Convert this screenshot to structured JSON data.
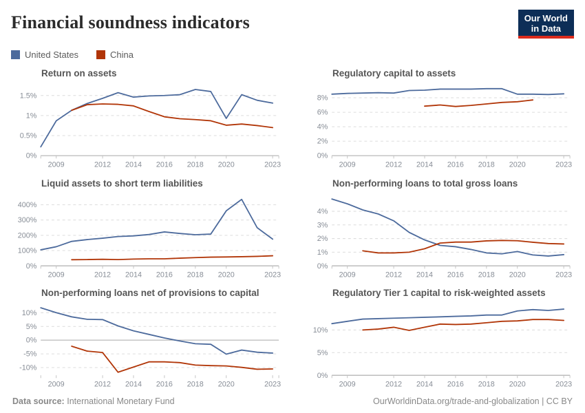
{
  "page": {
    "title": "Financial soundness indicators",
    "logo": {
      "line1": "Our World",
      "line2": "in Data"
    },
    "footer": {
      "source_label": "Data source:",
      "source_value": "International Monetary Fund",
      "right_text": "OurWorldinData.org/trade-and-globalization | CC BY"
    }
  },
  "colors": {
    "united_states": "#4C6A9C",
    "china": "#B13507",
    "logo_bg": "#0d2e57",
    "logo_underline": "#dc2b1c",
    "grid": "#dcdcdc",
    "zero_line": "#a6a6a6",
    "tick_label": "#878d96"
  },
  "legend": {
    "items": [
      {
        "label": "United States",
        "color": "#4C6A9C"
      },
      {
        "label": "China",
        "color": "#B13507"
      }
    ]
  },
  "chart_data": [
    {
      "type": "line",
      "title": "Return on assets",
      "unit": "%",
      "xlim": [
        2008,
        2023.4
      ],
      "ylim": [
        0,
        1.75
      ],
      "x_ticks": [
        2009,
        2012,
        2014,
        2016,
        2018,
        2020,
        2023
      ],
      "y_ticks": [
        0,
        0.5,
        1,
        1.5
      ],
      "y_tick_labels": [
        "0%",
        "0.5%",
        "1%",
        "1.5%"
      ],
      "grid": true,
      "legend_position": "top-of-page",
      "series": [
        {
          "name": "United States",
          "color": "#4C6A9C",
          "x": [
            2008,
            2009,
            2010,
            2011,
            2012,
            2013,
            2014,
            2015,
            2016,
            2017,
            2018,
            2019,
            2020,
            2021,
            2022,
            2023
          ],
          "values": [
            0.22,
            0.87,
            1.13,
            1.3,
            1.43,
            1.57,
            1.46,
            1.49,
            1.5,
            1.52,
            1.65,
            1.6,
            0.93,
            1.52,
            1.38,
            1.31
          ]
        },
        {
          "name": "China",
          "color": "#B13507",
          "x": [
            2010,
            2011,
            2012,
            2013,
            2014,
            2015,
            2016,
            2017,
            2018,
            2019,
            2020,
            2021,
            2022,
            2023
          ],
          "values": [
            1.13,
            1.27,
            1.29,
            1.28,
            1.24,
            1.1,
            0.97,
            0.92,
            0.9,
            0.87,
            0.76,
            0.79,
            0.75,
            0.7
          ]
        }
      ]
    },
    {
      "type": "line",
      "title": "Regulatory capital to assets",
      "unit": "%",
      "xlim": [
        2008,
        2023.4
      ],
      "ylim": [
        0,
        9.7
      ],
      "x_ticks": [
        2009,
        2012,
        2014,
        2016,
        2018,
        2020,
        2023
      ],
      "y_ticks": [
        0,
        2,
        4,
        6,
        8
      ],
      "y_tick_labels": [
        "0%",
        "2%",
        "4%",
        "6%",
        "8%"
      ],
      "grid": true,
      "series": [
        {
          "name": "United States",
          "color": "#4C6A9C",
          "x": [
            2008,
            2009,
            2010,
            2011,
            2012,
            2013,
            2014,
            2015,
            2016,
            2017,
            2018,
            2019,
            2020,
            2021,
            2022,
            2023
          ],
          "values": [
            8.5,
            8.6,
            8.65,
            8.7,
            8.65,
            9.0,
            9.05,
            9.2,
            9.2,
            9.2,
            9.25,
            9.25,
            8.5,
            8.5,
            8.45,
            8.55
          ]
        },
        {
          "name": "China",
          "color": "#B13507",
          "x": [
            2014,
            2015,
            2016,
            2017,
            2018,
            2019,
            2020,
            2021
          ],
          "values": [
            6.85,
            7.0,
            6.8,
            6.95,
            7.15,
            7.35,
            7.45,
            7.7
          ]
        }
      ]
    },
    {
      "type": "line",
      "title": "Liquid assets to short term liabilities",
      "unit": "%",
      "xlim": [
        2008,
        2023.4
      ],
      "ylim": [
        0,
        460
      ],
      "x_ticks": [
        2009,
        2012,
        2014,
        2016,
        2018,
        2020,
        2023
      ],
      "y_ticks": [
        0,
        100,
        200,
        300,
        400
      ],
      "y_tick_labels": [
        "0%",
        "100%",
        "200%",
        "300%",
        "400%"
      ],
      "grid": true,
      "series": [
        {
          "name": "United States",
          "color": "#4C6A9C",
          "x": [
            2008,
            2009,
            2010,
            2011,
            2012,
            2013,
            2014,
            2015,
            2016,
            2017,
            2018,
            2019,
            2020,
            2021,
            2022,
            2023
          ],
          "values": [
            105,
            125,
            160,
            172,
            181,
            192,
            196,
            205,
            222,
            212,
            204,
            208,
            360,
            435,
            250,
            175
          ]
        },
        {
          "name": "China",
          "color": "#B13507",
          "x": [
            2010,
            2011,
            2012,
            2013,
            2014,
            2015,
            2016,
            2017,
            2018,
            2019,
            2020,
            2021,
            2022,
            2023
          ],
          "values": [
            40,
            41,
            43,
            41,
            44,
            46,
            46,
            50,
            54,
            57,
            58,
            60,
            62,
            66
          ]
        }
      ]
    },
    {
      "type": "line",
      "title": "Non-performing loans to total gross loans",
      "unit": "%",
      "xlim": [
        2008,
        2023.4
      ],
      "ylim": [
        0,
        5.15
      ],
      "x_ticks": [
        2009,
        2012,
        2014,
        2016,
        2018,
        2020,
        2023
      ],
      "y_ticks": [
        0,
        1,
        2,
        3,
        4
      ],
      "y_tick_labels": [
        "0%",
        "1%",
        "2%",
        "3%",
        "4%"
      ],
      "grid": true,
      "series": [
        {
          "name": "United States",
          "color": "#4C6A9C",
          "x": [
            2008,
            2009,
            2010,
            2011,
            2012,
            2013,
            2014,
            2015,
            2016,
            2017,
            2018,
            2019,
            2020,
            2021,
            2022,
            2023
          ],
          "values": [
            4.9,
            4.55,
            4.1,
            3.8,
            3.3,
            2.45,
            1.9,
            1.5,
            1.4,
            1.2,
            0.95,
            0.88,
            1.05,
            0.8,
            0.72,
            0.82
          ]
        },
        {
          "name": "China",
          "color": "#B13507",
          "x": [
            2010,
            2011,
            2012,
            2013,
            2014,
            2015,
            2016,
            2017,
            2018,
            2019,
            2020,
            2021,
            2022,
            2023
          ],
          "values": [
            1.1,
            0.95,
            0.95,
            1.0,
            1.25,
            1.67,
            1.74,
            1.74,
            1.83,
            1.86,
            1.84,
            1.73,
            1.63,
            1.6
          ]
        }
      ]
    },
    {
      "type": "line",
      "title": "Non-performing loans net of provisions to capital",
      "unit": "%",
      "xlim": [
        2008,
        2023.4
      ],
      "ylim": [
        -12.8,
        12.8
      ],
      "x_ticks": [
        2009,
        2012,
        2014,
        2016,
        2018,
        2020,
        2023
      ],
      "y_ticks": [
        -10,
        -5,
        0,
        5,
        10
      ],
      "y_tick_labels": [
        "-10%",
        "-5%",
        "0%",
        "5%",
        "10%"
      ],
      "grid": true,
      "series": [
        {
          "name": "United States",
          "color": "#4C6A9C",
          "x": [
            2008,
            2009,
            2010,
            2011,
            2012,
            2013,
            2014,
            2015,
            2016,
            2017,
            2018,
            2019,
            2020,
            2021,
            2022,
            2023
          ],
          "values": [
            11.8,
            10.0,
            8.5,
            7.6,
            7.5,
            5.2,
            3.4,
            2.1,
            0.8,
            -0.3,
            -1.3,
            -1.5,
            -5.1,
            -3.6,
            -4.4,
            -4.7
          ]
        },
        {
          "name": "China",
          "color": "#B13507",
          "x": [
            2010,
            2011,
            2012,
            2013,
            2014,
            2015,
            2016,
            2017,
            2018,
            2019,
            2020,
            2021,
            2022,
            2023
          ],
          "values": [
            -2.2,
            -4.0,
            -4.5,
            -11.7,
            -9.8,
            -7.9,
            -7.9,
            -8.2,
            -9.1,
            -9.3,
            -9.4,
            -9.9,
            -10.6,
            -10.5
          ]
        }
      ]
    },
    {
      "type": "line",
      "title": "Regulatory Tier 1 capital to risk-weighted assets",
      "unit": "%",
      "xlim": [
        2008,
        2023.4
      ],
      "ylim": [
        0,
        15.5
      ],
      "x_ticks": [
        2009,
        2012,
        2014,
        2016,
        2018,
        2020,
        2023
      ],
      "y_ticks": [
        0,
        5,
        10
      ],
      "y_tick_labels": [
        "0%",
        "5%",
        "10%"
      ],
      "grid": true,
      "series": [
        {
          "name": "United States",
          "color": "#4C6A9C",
          "x": [
            2008,
            2009,
            2010,
            2011,
            2012,
            2013,
            2014,
            2015,
            2016,
            2017,
            2018,
            2019,
            2020,
            2021,
            2022,
            2023
          ],
          "values": [
            11.4,
            11.9,
            12.4,
            12.5,
            12.6,
            12.7,
            12.8,
            12.9,
            13.0,
            13.1,
            13.3,
            13.3,
            14.2,
            14.5,
            14.3,
            14.6
          ]
        },
        {
          "name": "China",
          "color": "#B13507",
          "x": [
            2010,
            2011,
            2012,
            2013,
            2014,
            2015,
            2016,
            2017,
            2018,
            2019,
            2020,
            2021,
            2022,
            2023
          ],
          "values": [
            10.0,
            10.2,
            10.6,
            9.9,
            10.6,
            11.3,
            11.2,
            11.3,
            11.6,
            11.9,
            12.0,
            12.3,
            12.3,
            12.1
          ]
        }
      ]
    }
  ]
}
